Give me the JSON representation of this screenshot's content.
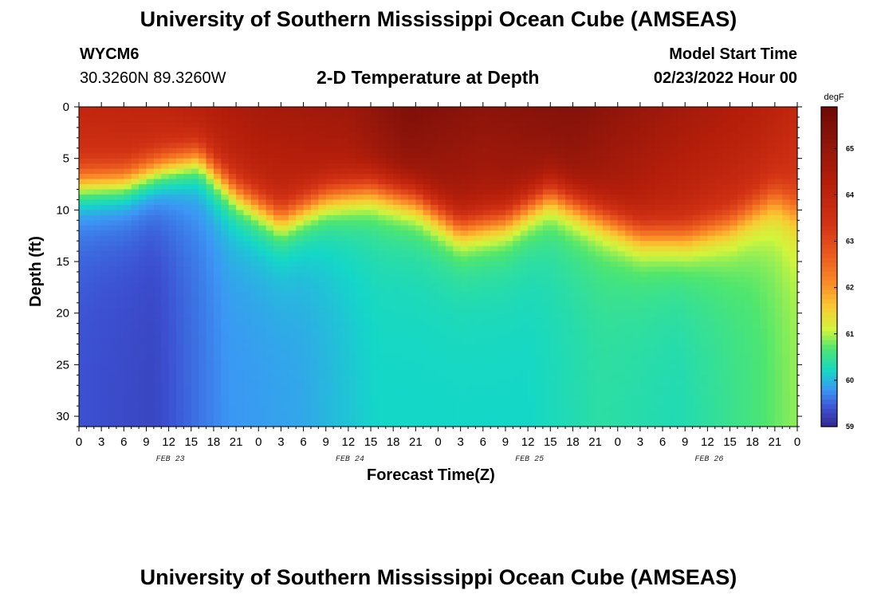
{
  "header": {
    "title": "University of Southern Mississippi Ocean Cube (AMSEAS)",
    "station": "WYCM6",
    "coords": "30.3260N  89.3260W",
    "subtitle": "2-D Temperature at Depth",
    "model_label": "Model Start Time",
    "model_time": "02/23/2022 Hour 00",
    "bottom_title": "University of Southern Mississippi Ocean Cube (AMSEAS)"
  },
  "chart_data": {
    "type": "heatmap",
    "title": "2-D Temperature at Depth",
    "xlabel": "Forecast Time(Z)",
    "ylabel": "Depth (ft)",
    "x_range_hours": [
      0,
      96
    ],
    "y_range_ft": [
      0,
      31
    ],
    "x_tick_labels": [
      "0",
      "3",
      "6",
      "9",
      "12",
      "15",
      "18",
      "21",
      "0",
      "3",
      "6",
      "9",
      "12",
      "15",
      "18",
      "21",
      "0",
      "3",
      "6",
      "9",
      "12",
      "15",
      "18",
      "21",
      "0",
      "3",
      "6",
      "9",
      "12",
      "15",
      "18",
      "21",
      "0"
    ],
    "y_tick_labels": [
      "0",
      "5",
      "10",
      "15",
      "20",
      "25",
      "30"
    ],
    "y_tick_values": [
      0,
      5,
      10,
      15,
      20,
      25,
      30
    ],
    "date_labels": [
      {
        "label": "FEB 23",
        "hour": 12
      },
      {
        "label": "FEB 24",
        "hour": 36
      },
      {
        "label": "FEB 25",
        "hour": 60
      },
      {
        "label": "FEB 26",
        "hour": 84
      }
    ],
    "colorbar": {
      "unit": "degF",
      "min": 59,
      "max": 65.9,
      "labels": [
        "65",
        "64",
        "63",
        "62",
        "61",
        "60",
        "59"
      ],
      "label_values": [
        65,
        64,
        63,
        62,
        61,
        60,
        59
      ]
    },
    "thermocline_depth_ft_by_hour": [
      {
        "hour": 0,
        "depth": 7.2
      },
      {
        "hour": 6,
        "depth": 7.0
      },
      {
        "hour": 11,
        "depth": 5.6
      },
      {
        "hour": 16,
        "depth": 4.6
      },
      {
        "hour": 21,
        "depth": 8.0
      },
      {
        "hour": 27,
        "depth": 10.6
      },
      {
        "hour": 33,
        "depth": 8.4
      },
      {
        "hour": 39,
        "depth": 7.6
      },
      {
        "hour": 45,
        "depth": 8.6
      },
      {
        "hour": 51,
        "depth": 11.4
      },
      {
        "hour": 57,
        "depth": 10.6
      },
      {
        "hour": 63,
        "depth": 8.0
      },
      {
        "hour": 69,
        "depth": 10.0
      },
      {
        "hour": 75,
        "depth": 12.0
      },
      {
        "hour": 81,
        "depth": 12.2
      },
      {
        "hour": 87,
        "depth": 11.0
      },
      {
        "hour": 93,
        "depth": 8.4
      },
      {
        "hour": 96,
        "depth": 9.5
      }
    ],
    "surface_temp_by_hour": [
      {
        "hour": 0,
        "temp": 63.9
      },
      {
        "hour": 12,
        "temp": 64.0
      },
      {
        "hour": 24,
        "temp": 64.6
      },
      {
        "hour": 36,
        "temp": 64.8
      },
      {
        "hour": 44,
        "temp": 65.5
      },
      {
        "hour": 54,
        "temp": 65.2
      },
      {
        "hour": 66,
        "temp": 65.4
      },
      {
        "hour": 78,
        "temp": 64.8
      },
      {
        "hour": 90,
        "temp": 64.3
      },
      {
        "hour": 96,
        "temp": 63.9
      }
    ],
    "bottom_temp_by_hour": [
      {
        "hour": 0,
        "temp": 59.4
      },
      {
        "hour": 10,
        "temp": 59.3
      },
      {
        "hour": 20,
        "temp": 59.8
      },
      {
        "hour": 30,
        "temp": 59.9
      },
      {
        "hour": 40,
        "temp": 60.2
      },
      {
        "hour": 50,
        "temp": 60.2
      },
      {
        "hour": 60,
        "temp": 60.2
      },
      {
        "hour": 70,
        "temp": 60.4
      },
      {
        "hour": 80,
        "temp": 60.3
      },
      {
        "hour": 90,
        "temp": 60.6
      },
      {
        "hour": 96,
        "temp": 60.9
      }
    ]
  }
}
